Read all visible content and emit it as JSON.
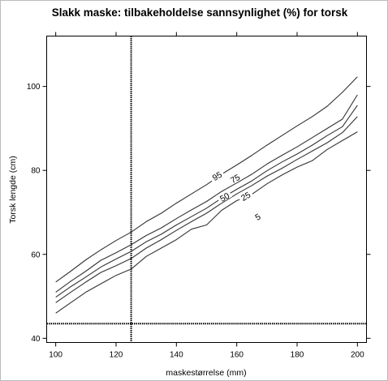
{
  "chart_data": {
    "type": "line",
    "title": "Slakk maske: tilbakeholdelse sannsynlighet (%) for torsk",
    "xlabel": "maskestørrelse (mm)",
    "ylabel": "Torsk lengde (cm)",
    "xlim": [
      97,
      203
    ],
    "ylim": [
      39,
      112
    ],
    "xticks": [
      100,
      120,
      140,
      160,
      180,
      200
    ],
    "yticks": [
      40,
      60,
      80,
      100
    ],
    "grid": false,
    "legend": "none",
    "line_color": "#333333",
    "series": [
      {
        "name": "5",
        "x": [
          100,
          105,
          110,
          115,
          120,
          125,
          130,
          135,
          140,
          145,
          150,
          155,
          160,
          165,
          170,
          175,
          180,
          185,
          190,
          195,
          200
        ],
        "y": [
          46,
          48.5,
          51,
          53,
          55,
          56.5,
          59.5,
          61.5,
          63.5,
          66,
          67,
          70.5,
          72.8,
          74.3,
          76.8,
          78.9,
          80.8,
          82.3,
          85,
          87.1,
          89.2
        ]
      },
      {
        "name": "25",
        "x": [
          100,
          105,
          110,
          115,
          120,
          125,
          130,
          135,
          140,
          145,
          150,
          155,
          160,
          165,
          170,
          175,
          180,
          185,
          190,
          195,
          200
        ],
        "y": [
          48.5,
          51,
          53.4,
          55.7,
          57.3,
          59,
          61.5,
          63.5,
          65.7,
          67.8,
          69.8,
          72.2,
          74.4,
          76.4,
          78.6,
          80.5,
          82.6,
          84.6,
          86.6,
          89,
          92.8
        ]
      },
      {
        "name": "50",
        "x": [
          100,
          105,
          110,
          115,
          120,
          125,
          130,
          135,
          140,
          145,
          150,
          155,
          160,
          165,
          170,
          175,
          180,
          185,
          190,
          195,
          200
        ],
        "y": [
          49.8,
          52.3,
          54.6,
          57,
          58.9,
          60.7,
          63,
          64.8,
          67,
          69,
          71,
          73.4,
          75.5,
          77.5,
          79.9,
          82,
          83.9,
          86,
          88.3,
          90.4,
          95.5
        ]
      },
      {
        "name": "75",
        "x": [
          100,
          105,
          110,
          115,
          120,
          125,
          130,
          135,
          140,
          145,
          150,
          155,
          160,
          165,
          170,
          175,
          180,
          185,
          190,
          195,
          200
        ],
        "y": [
          51,
          53.6,
          56,
          58.6,
          60.4,
          62.3,
          64.5,
          66.3,
          68.5,
          70.6,
          72.6,
          75,
          77,
          79.1,
          81.5,
          83.6,
          85.6,
          87.8,
          90,
          92.2,
          98
        ]
      },
      {
        "name": "95",
        "x": [
          100,
          105,
          110,
          115,
          120,
          125,
          130,
          135,
          140,
          145,
          150,
          155,
          160,
          165,
          170,
          175,
          180,
          185,
          190,
          195,
          200
        ],
        "y": [
          53.4,
          56,
          58.7,
          61.1,
          63.3,
          65.3,
          67.8,
          69.8,
          72.2,
          74.4,
          76.6,
          79.1,
          81.3,
          83.6,
          86,
          88.3,
          90.6,
          92.8,
          95.3,
          98.6,
          102.3
        ]
      }
    ],
    "reference_lines": [
      {
        "orientation": "vertical",
        "value": 125,
        "style": "dotted"
      },
      {
        "orientation": "horizontal",
        "value": 43.5,
        "style": "dotted"
      }
    ],
    "contour_labels": [
      {
        "text": "95",
        "x": 153.5,
        "y": 78.6,
        "rotation": -30
      },
      {
        "text": "75",
        "x": 159.5,
        "y": 78.0,
        "rotation": -30
      },
      {
        "text": "50",
        "x": 156,
        "y": 73.6,
        "rotation": -30
      },
      {
        "text": "25",
        "x": 163,
        "y": 73.8,
        "rotation": -30
      },
      {
        "text": "5",
        "x": 167,
        "y": 68.9,
        "rotation": -30
      }
    ]
  }
}
